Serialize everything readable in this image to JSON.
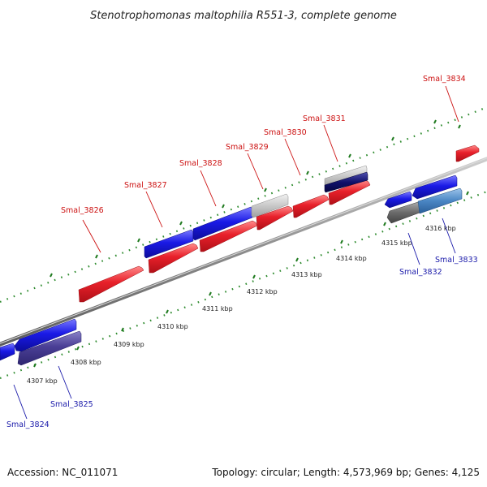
{
  "title": "Stenotrophomonas maltophilia R551-3, complete genome",
  "footer": {
    "accession": "Accession: NC_011071",
    "summary": "Topology: circular; Length: 4,573,969 bp; Genes: 4,125"
  },
  "colors": {
    "backbone": "#8c8c8c",
    "tick": "#2e8b2e",
    "forward_gene": "#e8202a",
    "reverse_gene": "#1a1ae6",
    "forward_label": "#cc1111",
    "reverse_label": "#1a1aaa"
  },
  "scale_labels": [
    "4307 kbp",
    "4308 kbp",
    "4309 kbp",
    "4310 kbp",
    "4311 kbp",
    "4312 kbp",
    "4313 kbp",
    "4314 kbp",
    "4315 kbp",
    "4316 kbp"
  ],
  "forward_labels": [
    "Smal_3826",
    "Smal_3827",
    "Smal_3828",
    "Smal_3829",
    "Smal_3830",
    "Smal_3831",
    "Smal_3834"
  ],
  "reverse_labels": [
    "Smal_3824",
    "Smal_3825",
    "Smal_3832",
    "Smal_3833"
  ]
}
